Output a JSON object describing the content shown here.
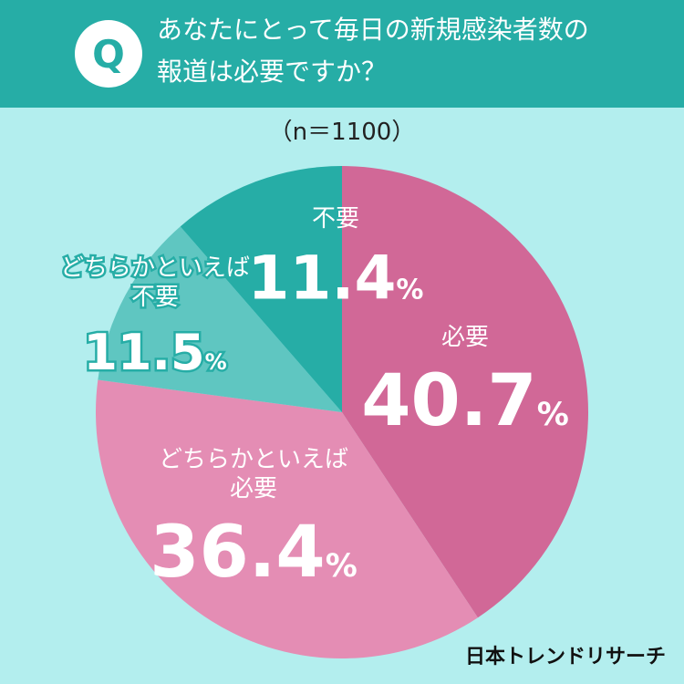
{
  "header": {
    "badge": "Q",
    "line1": "あなたにとって毎日の新規感染者数の",
    "line2": "報道は必要ですか？"
  },
  "n_label": "（n＝1100）",
  "brand": "日本トレンドリサーチ",
  "colors": {
    "background": "#b3eeee",
    "header": "#26ada6",
    "hitsuyou": "#d16897",
    "dochira_hitsuyou": "#e48db4",
    "dochira_fuyou": "#5fc6c1",
    "fuyou": "#26ada6"
  },
  "chart_data": {
    "type": "pie",
    "start_angle_deg": 0,
    "direction": "clockwise",
    "slices": [
      {
        "label": "必要",
        "label_lines": [
          "必要"
        ],
        "value": 40.7,
        "display": "40.7",
        "color": "#d16897"
      },
      {
        "label": "どちらかといえば必要",
        "label_lines": [
          "どちらかといえば",
          "必要"
        ],
        "value": 36.4,
        "display": "36.4",
        "color": "#e48db4"
      },
      {
        "label": "どちらかといえば不要",
        "label_lines": [
          "どちらかといえば",
          "不要"
        ],
        "value": 11.5,
        "display": "11.5",
        "color": "#5fc6c1"
      },
      {
        "label": "不要",
        "label_lines": [
          "不要"
        ],
        "value": 11.4,
        "display": "11.4",
        "color": "#26ada6"
      }
    ],
    "unit": "%"
  }
}
